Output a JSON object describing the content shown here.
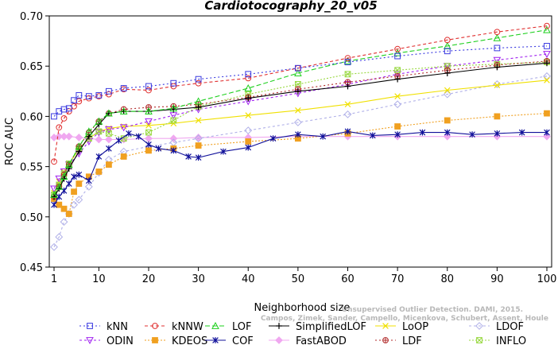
{
  "chart_data": {
    "type": "line",
    "title": "Cardiotocography_20_v05",
    "xlabel": "Neighborhood size",
    "ylabel": "ROC AUC",
    "xlim": [
      1,
      100
    ],
    "ylim": [
      0.45,
      0.7
    ],
    "xticks": [
      1,
      10,
      20,
      30,
      40,
      50,
      60,
      70,
      80,
      90,
      100
    ],
    "yticks": [
      0.45,
      0.5,
      0.55,
      0.6,
      0.65,
      0.7
    ],
    "ytick_labels": [
      "0.45",
      "0.50",
      "0.55",
      "0.60",
      "0.65",
      "0.70"
    ],
    "grid": false,
    "legend_position": "bottom",
    "watermark": [
      "Campos, Zimek, Sander, Campello, Micenkova, Schubert, Assent, Houle",
      "Unsupervised Outlier Detection. DAMI, 2015."
    ],
    "series": [
      {
        "name": "kNN",
        "color": "#3a3ae0",
        "marker": "square",
        "dash": "2,3",
        "x": [
          1,
          2,
          3,
          4,
          5,
          6,
          8,
          10,
          12,
          15,
          20,
          25,
          30,
          40,
          50,
          60,
          70,
          80,
          90,
          100
        ],
        "values": [
          0.6,
          0.605,
          0.607,
          0.608,
          0.616,
          0.621,
          0.62,
          0.621,
          0.625,
          0.628,
          0.63,
          0.633,
          0.637,
          0.642,
          0.648,
          0.654,
          0.66,
          0.665,
          0.668,
          0.67
        ]
      },
      {
        "name": "kNNW",
        "color": "#e03030",
        "marker": "circle",
        "dash": "4,3",
        "x": [
          1,
          2,
          3,
          4,
          5,
          6,
          8,
          10,
          12,
          15,
          20,
          25,
          30,
          40,
          50,
          60,
          70,
          80,
          90,
          100
        ],
        "values": [
          0.555,
          0.589,
          0.598,
          0.605,
          0.61,
          0.615,
          0.618,
          0.62,
          0.622,
          0.627,
          0.626,
          0.63,
          0.633,
          0.638,
          0.648,
          0.658,
          0.667,
          0.676,
          0.684,
          0.69
        ]
      },
      {
        "name": "LOF",
        "color": "#1ed01e",
        "marker": "triangle",
        "dash": "6,3",
        "x": [
          1,
          2,
          3,
          4,
          6,
          8,
          10,
          12,
          15,
          20,
          25,
          30,
          40,
          50,
          60,
          70,
          80,
          90,
          100
        ],
        "values": [
          0.522,
          0.53,
          0.54,
          0.552,
          0.57,
          0.585,
          0.595,
          0.603,
          0.605,
          0.605,
          0.608,
          0.615,
          0.628,
          0.643,
          0.655,
          0.663,
          0.67,
          0.678,
          0.686
        ]
      },
      {
        "name": "SimplifiedLOF",
        "color": "#000000",
        "marker": "plus",
        "dash": "",
        "x": [
          1,
          2,
          3,
          4,
          6,
          8,
          10,
          12,
          15,
          20,
          25,
          30,
          40,
          50,
          60,
          70,
          80,
          90,
          100
        ],
        "values": [
          0.52,
          0.528,
          0.538,
          0.548,
          0.565,
          0.58,
          0.592,
          0.603,
          0.605,
          0.605,
          0.607,
          0.609,
          0.618,
          0.625,
          0.63,
          0.637,
          0.643,
          0.649,
          0.653
        ]
      },
      {
        "name": "LoOP",
        "color": "#f0e000",
        "marker": "cross",
        "dash": "",
        "x": [
          1,
          2,
          3,
          4,
          6,
          8,
          10,
          12,
          15,
          20,
          25,
          30,
          40,
          50,
          60,
          70,
          80,
          90,
          100
        ],
        "values": [
          0.524,
          0.535,
          0.545,
          0.553,
          0.567,
          0.578,
          0.585,
          0.588,
          0.59,
          0.591,
          0.593,
          0.596,
          0.601,
          0.606,
          0.612,
          0.62,
          0.626,
          0.631,
          0.636
        ]
      },
      {
        "name": "LDOF",
        "color": "#b0b0e8",
        "marker": "diamond",
        "dash": "3,3",
        "x": [
          1,
          2,
          3,
          4,
          5,
          6,
          8,
          10,
          12,
          15,
          20,
          25,
          30,
          40,
          50,
          60,
          70,
          80,
          90,
          100
        ],
        "values": [
          0.47,
          0.48,
          0.495,
          0.503,
          0.512,
          0.517,
          0.53,
          0.544,
          0.557,
          0.565,
          0.57,
          0.574,
          0.578,
          0.586,
          0.594,
          0.602,
          0.612,
          0.622,
          0.632,
          0.64
        ]
      },
      {
        "name": "ODIN",
        "color": "#a020f0",
        "marker": "triangle-down",
        "dash": "3,3",
        "x": [
          1,
          2,
          3,
          4,
          6,
          8,
          10,
          12,
          15,
          20,
          25,
          30,
          40,
          50,
          60,
          70,
          80,
          90,
          100
        ],
        "values": [
          0.528,
          0.538,
          0.545,
          0.552,
          0.563,
          0.575,
          0.584,
          0.587,
          0.589,
          0.595,
          0.601,
          0.607,
          0.615,
          0.623,
          0.632,
          0.642,
          0.65,
          0.656,
          0.662
        ]
      },
      {
        "name": "KDEOS",
        "color": "#f0a020",
        "marker": "square-filled",
        "dash": "2,2",
        "x": [
          1,
          2,
          3,
          4,
          5,
          6,
          8,
          10,
          12,
          15,
          20,
          25,
          30,
          40,
          50,
          60,
          70,
          80,
          90,
          100
        ],
        "values": [
          0.518,
          0.512,
          0.508,
          0.503,
          0.525,
          0.533,
          0.54,
          0.545,
          0.552,
          0.56,
          0.566,
          0.568,
          0.571,
          0.575,
          0.578,
          0.583,
          0.59,
          0.596,
          0.6,
          0.603
        ]
      },
      {
        "name": "COF",
        "color": "#10109a",
        "marker": "asterisk",
        "dash": "",
        "x": [
          1,
          2,
          3,
          4,
          5,
          6,
          8,
          10,
          12,
          14,
          16,
          18,
          20,
          22,
          25,
          28,
          30,
          35,
          40,
          45,
          50,
          55,
          60,
          65,
          70,
          75,
          80,
          85,
          90,
          95,
          100
        ],
        "values": [
          0.512,
          0.52,
          0.526,
          0.533,
          0.54,
          0.542,
          0.536,
          0.56,
          0.568,
          0.576,
          0.583,
          0.58,
          0.572,
          0.568,
          0.566,
          0.56,
          0.559,
          0.565,
          0.569,
          0.578,
          0.582,
          0.58,
          0.585,
          0.581,
          0.582,
          0.584,
          0.584,
          0.582,
          0.583,
          0.584,
          0.584
        ]
      },
      {
        "name": "FastABOD",
        "color": "#f0a8f0",
        "marker": "diamond-filled",
        "dash": "",
        "x": [
          1,
          2,
          3,
          4,
          6,
          8,
          10,
          12,
          15,
          20,
          25,
          30,
          40,
          50,
          60,
          70,
          80,
          90,
          100
        ],
        "values": [
          0.579,
          0.58,
          0.58,
          0.58,
          0.579,
          0.578,
          0.577,
          0.577,
          0.577,
          0.578,
          0.578,
          0.579,
          0.579,
          0.58,
          0.58,
          0.58,
          0.58,
          0.58,
          0.58
        ]
      },
      {
        "name": "LDF",
        "color": "#b02828",
        "marker": "circle-plus",
        "dash": "2,3",
        "x": [
          1,
          2,
          3,
          4,
          6,
          8,
          10,
          12,
          15,
          20,
          25,
          30,
          40,
          50,
          60,
          70,
          80,
          90,
          100
        ],
        "values": [
          0.52,
          0.53,
          0.542,
          0.552,
          0.57,
          0.584,
          0.595,
          0.603,
          0.607,
          0.609,
          0.61,
          0.612,
          0.619,
          0.627,
          0.634,
          0.64,
          0.646,
          0.651,
          0.655
        ]
      },
      {
        "name": "INFLO",
        "color": "#98d840",
        "marker": "square-cross",
        "dash": "2,2",
        "x": [
          1,
          2,
          3,
          4,
          6,
          8,
          10,
          12,
          15,
          20,
          25,
          30,
          40,
          50,
          60,
          70,
          80,
          90,
          100
        ],
        "values": [
          0.522,
          0.532,
          0.543,
          0.553,
          0.568,
          0.578,
          0.585,
          0.583,
          0.578,
          0.584,
          0.596,
          0.61,
          0.622,
          0.632,
          0.642,
          0.646,
          0.65,
          0.652,
          0.654
        ]
      }
    ]
  }
}
